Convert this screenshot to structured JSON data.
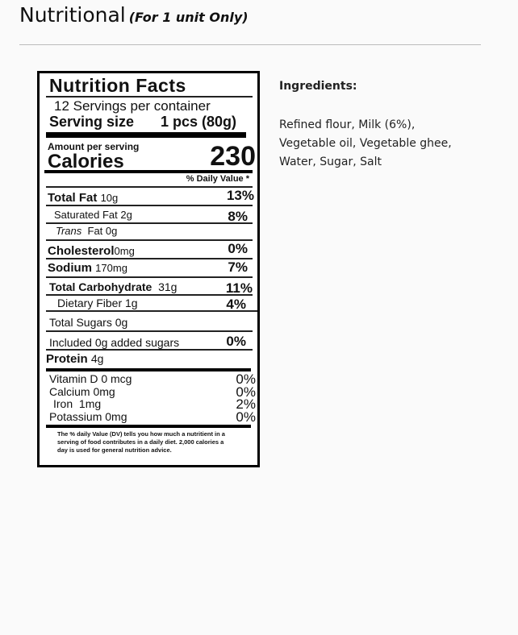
{
  "header": {
    "title": "Nutritional",
    "subtitle": "(For 1 unit Only)"
  },
  "label": {
    "title": "Nutrition Facts",
    "servings": "12 Servings per container",
    "serving_size_label": "Serving size",
    "serving_size": "1 pcs (80g)",
    "amount_per_serving": "Amount per serving",
    "calories_label": "Calories",
    "calories": "230",
    "dv_header": "% Daily Value *",
    "rows": [
      {
        "name": "Total Fat",
        "amount": "10g",
        "dv": "13%"
      },
      {
        "name": "Saturated Fat 2g",
        "dv": "8%"
      },
      {
        "name": "Trans",
        "amount": "Fat 0g"
      },
      {
        "name": "Cholesterol",
        "amount": "0mg",
        "dv": "0%"
      },
      {
        "name": "Sodium",
        "amount": "170mg",
        "dv": "7%"
      },
      {
        "name": "Total Carbohydrate",
        "amount": "31g",
        "dv": "11%"
      },
      {
        "name": "Dietary Fiber 1g",
        "dv": "4%"
      },
      {
        "name": "Total Sugars 0g"
      },
      {
        "name": "Included 0g added sugars",
        "dv": "0%"
      },
      {
        "name": "Protein",
        "amount": "4g"
      }
    ],
    "vitamins": [
      {
        "name": "Vitamin D 0 mcg",
        "dv": "0%"
      },
      {
        "name": "Calcium 0mg",
        "dv": "0%"
      },
      {
        "name": "Iron  1mg",
        "dv": "2%"
      },
      {
        "name": "Potassium 0mg",
        "dv": "0%"
      }
    ],
    "footnote": "The % daily Value (DV) tells you how much a nutritient in a serving of food contributes in a daily diet. 2,000 calories a day is used for general nutrition advice."
  },
  "ingredients": {
    "title": "Ingredients:",
    "text": "Refined flour, Milk (6%), Vegetable oil, Vegetable ghee, Water, Sugar, Salt"
  }
}
